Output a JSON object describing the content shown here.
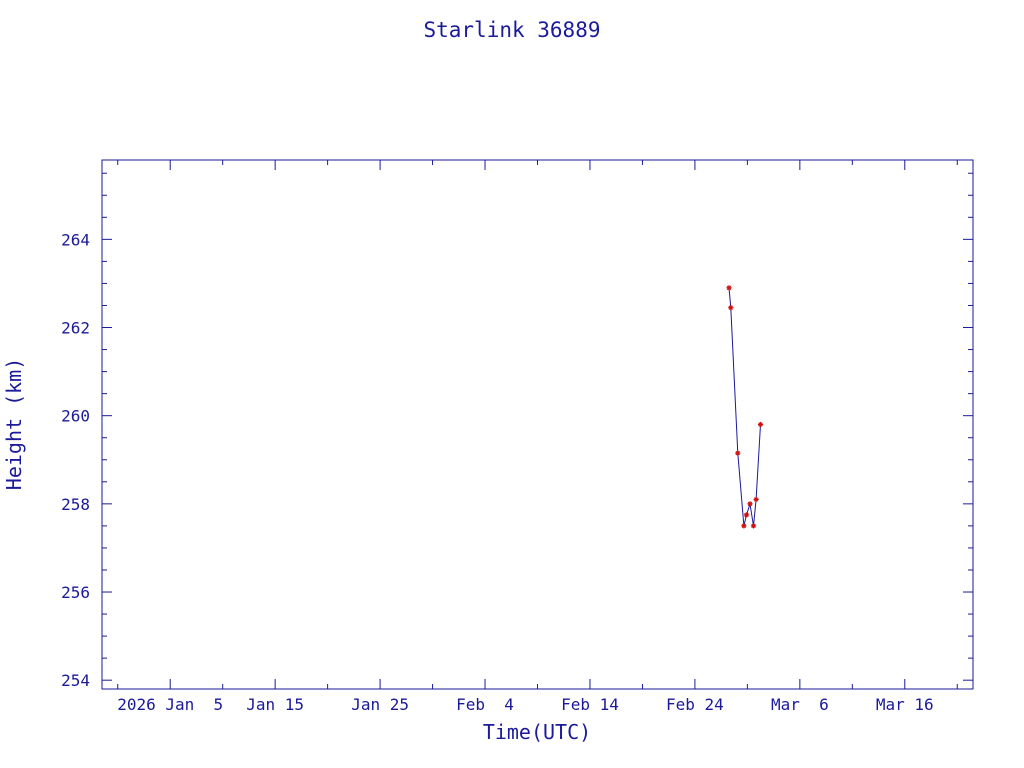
{
  "chart_data": {
    "type": "line",
    "title": "Starlink 36889",
    "xlabel": "Time(UTC)",
    "ylabel": "Height (km)",
    "x_axis_type": "date",
    "xlim": [
      "2025-12-29T12:00",
      "2026-03-22T12:00"
    ],
    "ylim": [
      253.8,
      265.8
    ],
    "x_ticks": [
      {
        "date": "2026-01-05",
        "label": "2026 Jan  5"
      },
      {
        "date": "2026-01-15",
        "label": "Jan 15"
      },
      {
        "date": "2026-01-25",
        "label": "Jan 25"
      },
      {
        "date": "2026-02-04",
        "label": "Feb  4"
      },
      {
        "date": "2026-02-14",
        "label": "Feb 14"
      },
      {
        "date": "2026-02-24",
        "label": "Feb 24"
      },
      {
        "date": "2026-03-06",
        "label": "Mar  6"
      },
      {
        "date": "2026-03-16",
        "label": "Mar 16"
      }
    ],
    "y_ticks": [
      254,
      256,
      258,
      260,
      262,
      264
    ],
    "y_minor_step": 0.5,
    "x_minor_days": 5,
    "grid": false,
    "series": [
      {
        "line_color": "#1a1a9a",
        "marker_color": "#d01010",
        "marker": "asterisk",
        "x": [
          "2026-02-27T06:00",
          "2026-02-27T10:00",
          "2026-02-28T02:00",
          "2026-02-28T16:00",
          "2026-02-28T22:00",
          "2026-03-01T06:00",
          "2026-03-01T14:00",
          "2026-03-01T20:00",
          "2026-03-02T06:00"
        ],
        "y": [
          262.9,
          262.45,
          259.15,
          257.5,
          257.75,
          258.0,
          257.5,
          258.1,
          259.8
        ]
      }
    ]
  }
}
